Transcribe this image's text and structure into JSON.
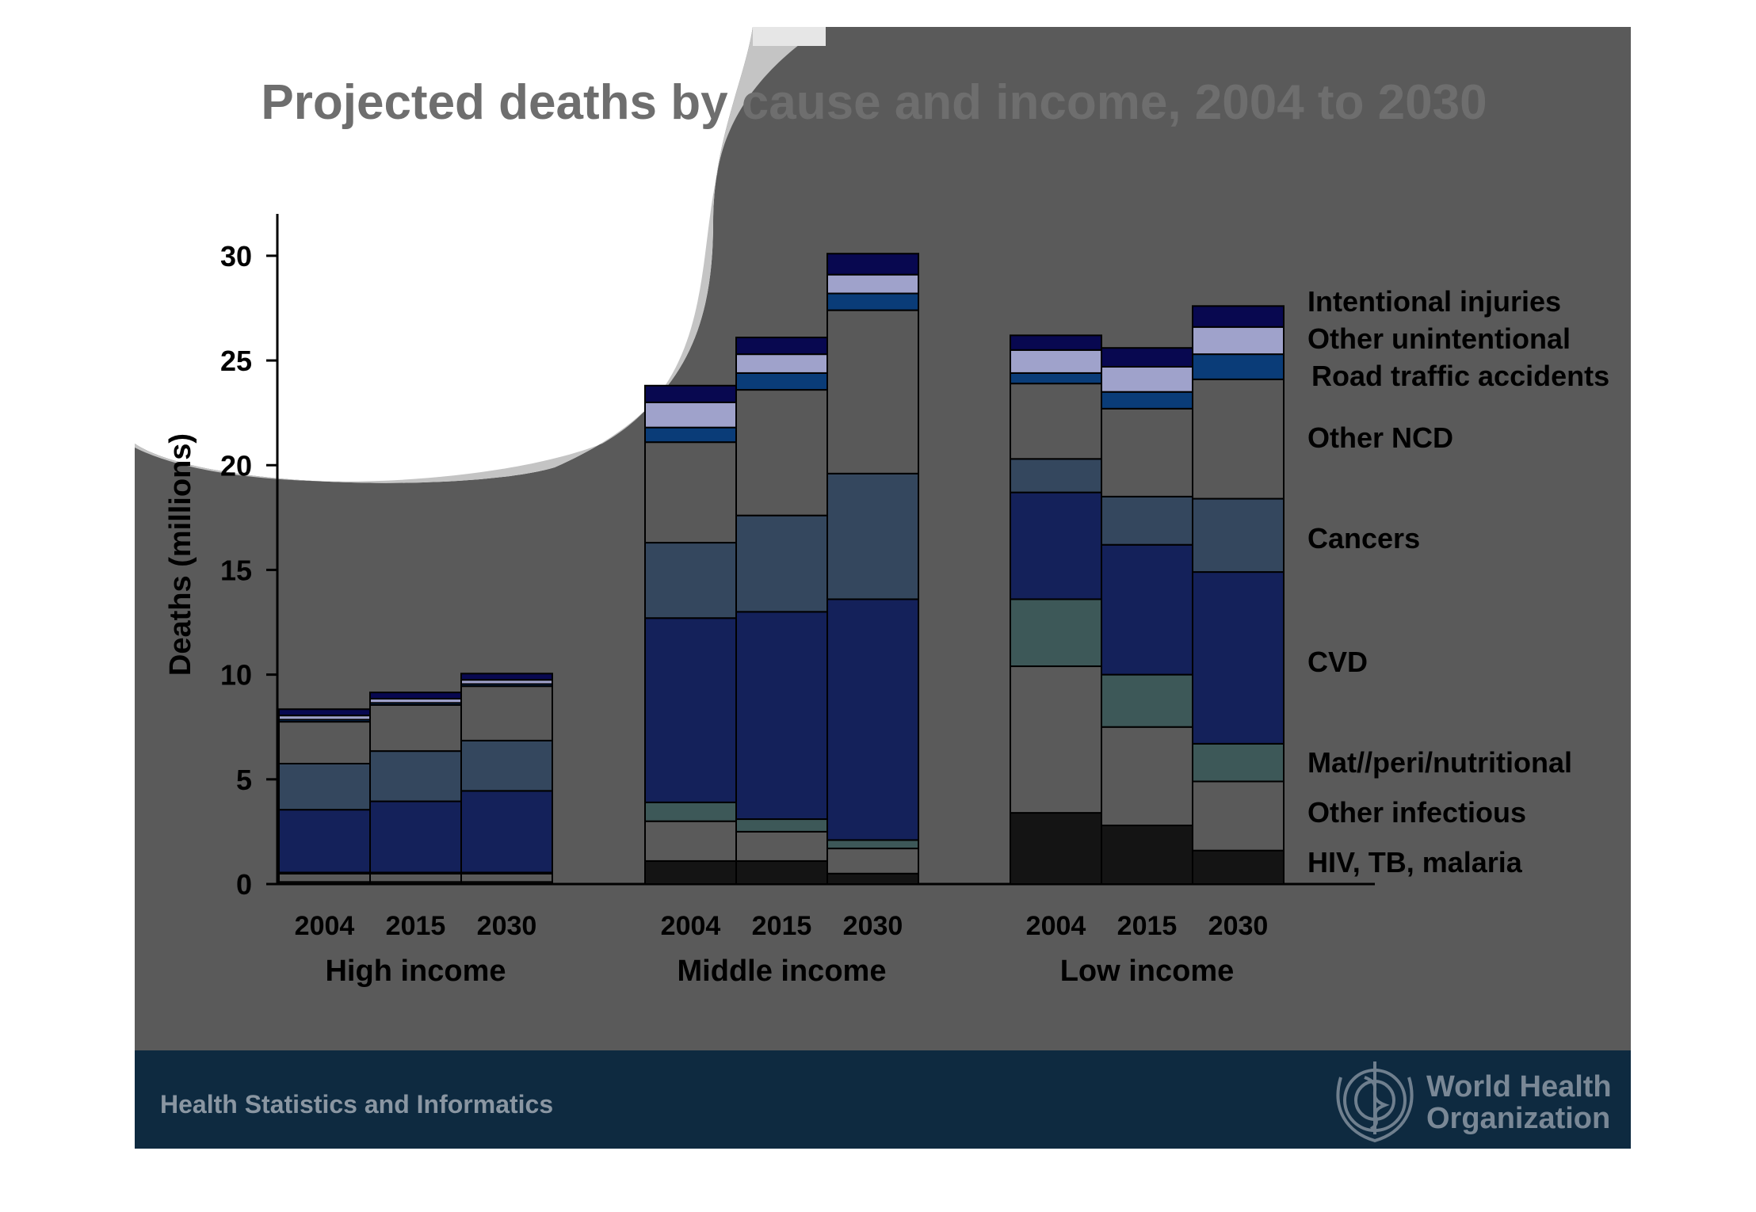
{
  "slide": {
    "title": "Projected deaths by cause and income, 2004 to 2030",
    "footer_text": "Health Statistics and Informatics",
    "logo_text_line1": "World Health",
    "logo_text_line2": "Organization"
  },
  "colors": {
    "slide_bg": "#5a5a5a",
    "footer_bg": "#0e2a40",
    "title": "#6e6e6e",
    "axis_text": "#000000"
  },
  "chart_data": {
    "type": "bar",
    "stacked": true,
    "ylabel": "Deaths (millions)",
    "ylim": [
      0,
      32
    ],
    "yticks": [
      0,
      5,
      10,
      15,
      20,
      25,
      30
    ],
    "groups": [
      {
        "name": "High income",
        "categories": [
          "2004",
          "2015",
          "2030"
        ]
      },
      {
        "name": "Middle income",
        "categories": [
          "2004",
          "2015",
          "2030"
        ]
      },
      {
        "name": "Low income",
        "categories": [
          "2004",
          "2015",
          "2030"
        ]
      }
    ],
    "series": [
      {
        "name": "HIV, TB, malaria",
        "color": "#141414",
        "values": [
          0.1,
          0.1,
          0.1,
          1.1,
          1.1,
          0.5,
          3.4,
          2.8,
          1.6
        ]
      },
      {
        "name": "Other infectious",
        "color": "#5a5a5a",
        "values": [
          0.4,
          0.4,
          0.4,
          1.9,
          1.4,
          1.2,
          7.0,
          4.7,
          3.3
        ]
      },
      {
        "name": "Mat//peri/nutritional",
        "color": "#3d5858",
        "values": [
          0.05,
          0.05,
          0.05,
          0.9,
          0.6,
          0.4,
          3.2,
          2.5,
          1.8
        ]
      },
      {
        "name": "CVD",
        "color": "#14215a",
        "values": [
          3.0,
          3.4,
          3.9,
          8.8,
          9.9,
          11.5,
          5.1,
          6.2,
          8.2
        ]
      },
      {
        "name": "Cancers",
        "color": "#34475e",
        "values": [
          2.2,
          2.4,
          2.4,
          3.6,
          4.6,
          6.0,
          1.6,
          2.3,
          3.5
        ]
      },
      {
        "name": "Other NCD",
        "color": "#595959",
        "values": [
          2.0,
          2.2,
          2.6,
          4.8,
          6.0,
          7.8,
          3.6,
          4.2,
          5.7
        ]
      },
      {
        "name": "Road traffic accidents",
        "color": "#0a3c78",
        "values": [
          0.1,
          0.1,
          0.1,
          0.7,
          0.8,
          0.8,
          0.5,
          0.8,
          1.2
        ]
      },
      {
        "name": "Other unintentional",
        "color": "#9fa2cb",
        "values": [
          0.2,
          0.2,
          0.2,
          1.2,
          0.9,
          0.9,
          1.1,
          1.2,
          1.3
        ]
      },
      {
        "name": "Intentional injuries",
        "color": "#080850",
        "values": [
          0.3,
          0.3,
          0.3,
          0.8,
          0.8,
          1.0,
          0.7,
          0.9,
          1.0
        ]
      }
    ]
  }
}
